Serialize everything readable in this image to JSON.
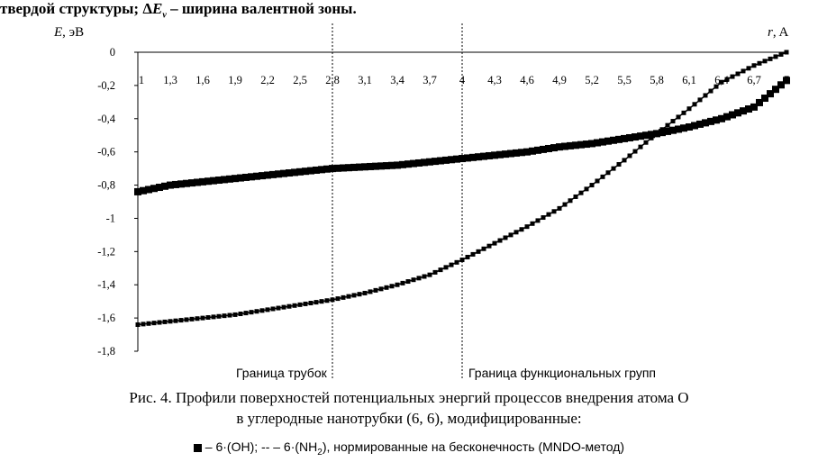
{
  "header_text": {
    "before": "твердой структуры; Δ",
    "sym": "E",
    "sub": "v",
    "after": " – ширина валентной зоны."
  },
  "chart_data": {
    "type": "line",
    "x_label_var": "r",
    "x_label_unit": ", A",
    "y_label_var": "E",
    "y_label_unit": ", эВ",
    "x_ticks": [
      "1",
      "1,3",
      "1,6",
      "1,9",
      "2,2",
      "2,5",
      "2,8",
      "3,1",
      "3,4",
      "3,7",
      "4",
      "4,3",
      "4,6",
      "4,9",
      "5,2",
      "5,5",
      "5,8",
      "6,1",
      "6,4",
      "6,7",
      "7"
    ],
    "x_range": [
      1,
      7
    ],
    "y_ticks": [
      "0",
      "-0,2",
      "-0,4",
      "-0,6",
      "-0,8",
      "-1",
      "-1,2",
      "-1,4",
      "-1,6",
      "-1,8"
    ],
    "y_range": [
      -1.8,
      0
    ],
    "boundaries": [
      {
        "x": 2.8,
        "label": "Граница трубок"
      },
      {
        "x": 4.0,
        "label": "Граница функциональных групп"
      }
    ],
    "series": [
      {
        "marker": "square",
        "x": [
          1.0,
          1.3,
          1.6,
          1.9,
          2.2,
          2.5,
          2.8,
          3.1,
          3.4,
          3.7,
          4.0,
          4.3,
          4.6,
          4.9,
          5.2,
          5.5,
          5.8,
          6.1,
          6.4,
          6.7,
          7.0
        ],
        "y": [
          -0.84,
          -0.8,
          -0.78,
          -0.76,
          -0.74,
          -0.72,
          -0.7,
          -0.69,
          -0.68,
          -0.66,
          -0.64,
          -0.62,
          -0.6,
          -0.57,
          -0.55,
          -0.52,
          -0.49,
          -0.45,
          -0.4,
          -0.33,
          -0.17
        ]
      },
      {
        "marker": "dash",
        "x": [
          1.0,
          1.3,
          1.6,
          1.9,
          2.2,
          2.5,
          2.8,
          3.1,
          3.4,
          3.7,
          4.0,
          4.3,
          4.6,
          4.9,
          5.2,
          5.5,
          5.8,
          6.1,
          6.4,
          6.7,
          7.0
        ],
        "y": [
          -1.64,
          -1.62,
          -1.6,
          -1.58,
          -1.55,
          -1.52,
          -1.49,
          -1.45,
          -1.4,
          -1.34,
          -1.25,
          -1.15,
          -1.05,
          -0.94,
          -0.8,
          -0.65,
          -0.49,
          -0.34,
          -0.18,
          -0.08,
          0.0
        ]
      }
    ]
  },
  "caption": {
    "line1_fig": "Рис. 4",
    "line1_rest": ". Профили поверхностей потенциальных энергий процессов внедрения атома О",
    "line2": "в углеродные нанотрубки (6, 6), модифицированные:"
  },
  "legend": {
    "s1": " – 6·(OH); ",
    "dash_marker": "-- –",
    "s2_pre": " 6·(NH",
    "s2_sub": "2",
    "s2_post": "), нормированные на бесконечность (MNDO-метод)"
  }
}
